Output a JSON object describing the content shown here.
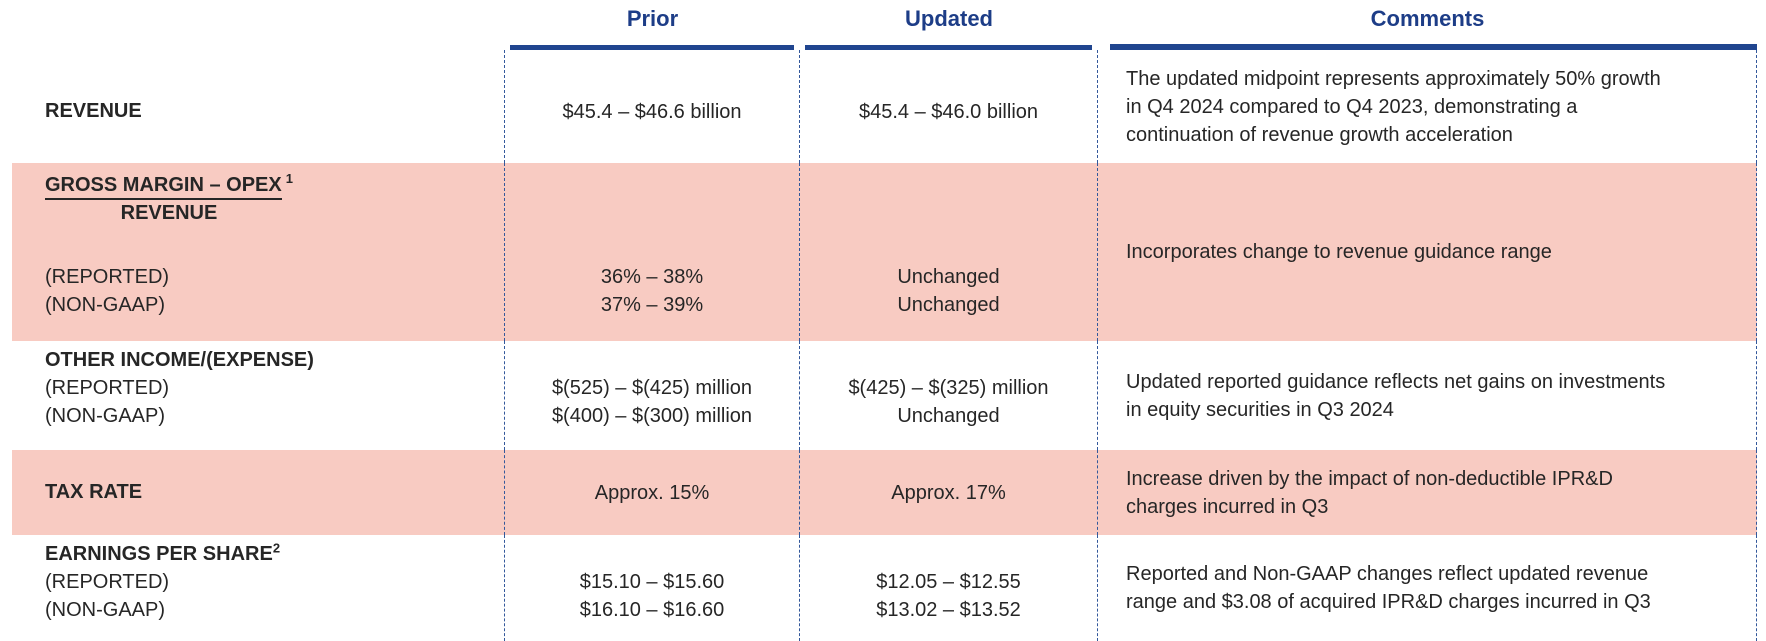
{
  "header": {
    "prior": "Prior",
    "updated": "Updated",
    "comments": "Comments"
  },
  "rows": [
    {
      "label": "REVENUE",
      "prior": "$45.4 – $46.6 billion",
      "updated": "$45.4 – $46.0 billion",
      "comment": "The updated midpoint represents approximately 50% growth\nin Q4 2024 compared to Q4 2023, demonstrating a\ncontinuation of revenue growth acceleration",
      "highlighted": false
    },
    {
      "label_numerator": "GROSS MARGIN – OPEX",
      "label_footnote": "1",
      "label_denominator": "REVENUE",
      "sub_labels": [
        "(REPORTED)",
        "(NON-GAAP)"
      ],
      "prior": [
        "36% – 38%",
        "37% – 39%"
      ],
      "updated": [
        "Unchanged",
        "Unchanged"
      ],
      "comment": "Incorporates change to revenue guidance range",
      "highlighted": true
    },
    {
      "label": "OTHER INCOME/(EXPENSE)",
      "sub_labels": [
        "(REPORTED)",
        "(NON-GAAP)"
      ],
      "prior": [
        "$(525) – $(425) million",
        "$(400) – $(300) million"
      ],
      "updated": [
        "$(425) – $(325) million",
        "Unchanged"
      ],
      "comment": "Updated reported guidance reflects net gains on investments\nin equity securities in Q3 2024",
      "highlighted": false
    },
    {
      "label": "TAX RATE",
      "prior": "Approx. 15%",
      "updated": "Approx. 17%",
      "comment": "Increase driven by the impact of non-deductible IPR&D\ncharges incurred in Q3",
      "highlighted": true
    },
    {
      "label": "EARNINGS PER SHARE",
      "label_footnote": "2",
      "sub_labels": [
        "(REPORTED)",
        "(NON-GAAP)"
      ],
      "prior": [
        "$15.10 – $15.60",
        "$16.10 – $16.60"
      ],
      "updated": [
        "$12.05 – $12.55",
        "$13.02 – $13.52"
      ],
      "comment": "Reported and Non-GAAP changes reflect updated revenue\nrange and $3.08 of acquired IPR&D charges incurred in Q3",
      "highlighted": false
    }
  ],
  "colors": {
    "accent_blue_text": "#1d3d87",
    "header_bar_blue": "#20458f",
    "dashed_line_blue": "#33589b",
    "highlight_pink": "#f8cbc2",
    "body_text": "#262626"
  }
}
